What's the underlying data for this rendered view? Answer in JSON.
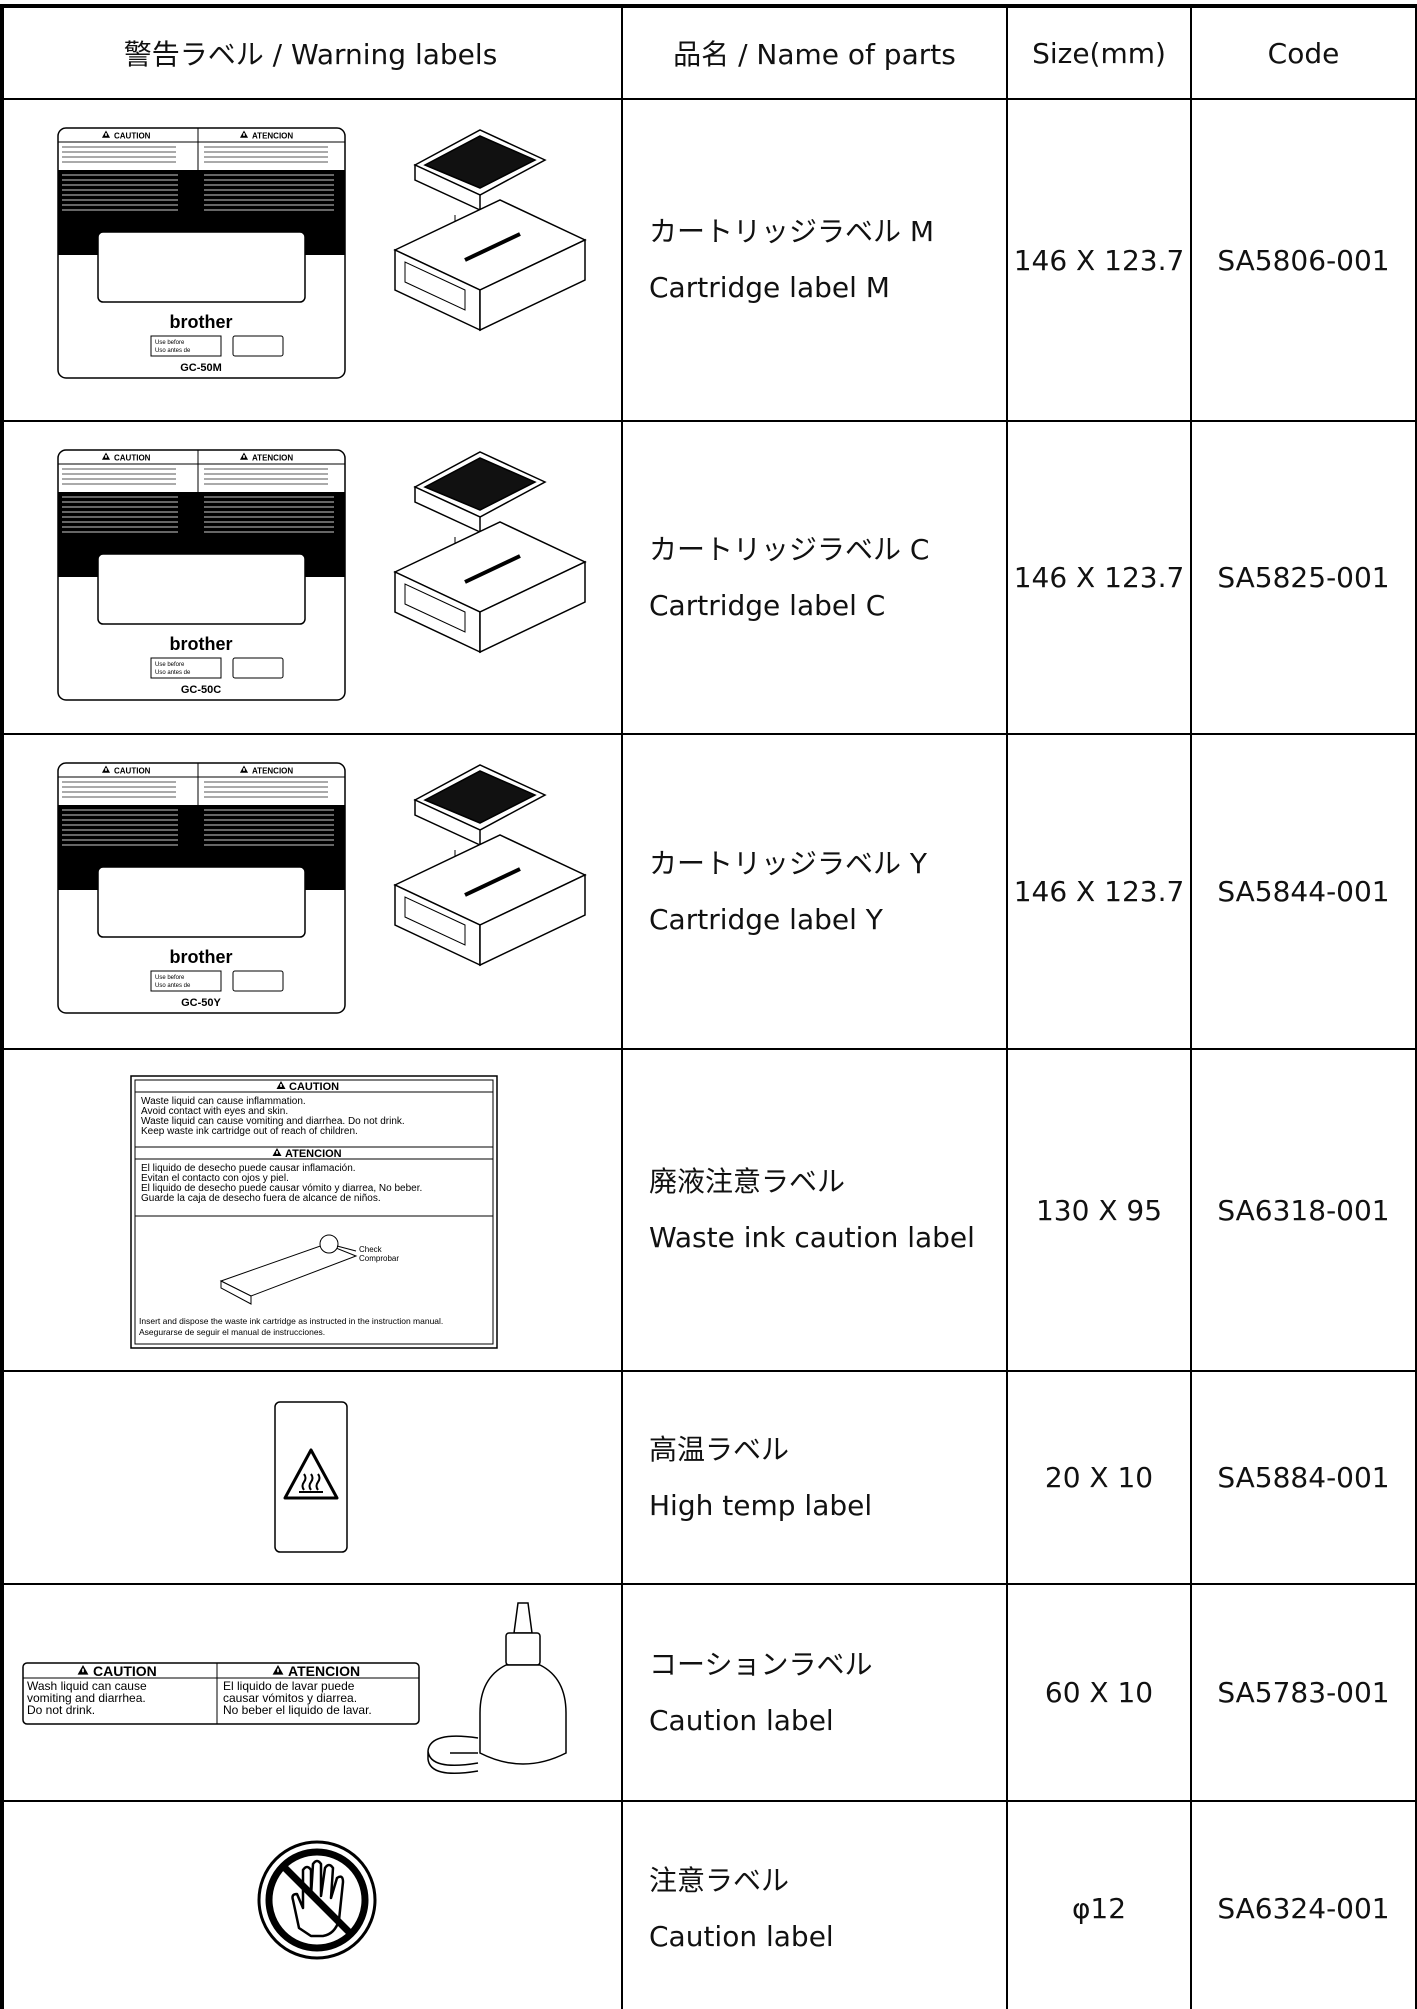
{
  "header": [
    "警告ラベル / Warning labels",
    "品名 / Name of parts",
    "Size(mm)",
    "Code"
  ],
  "rows": [
    {
      "name_ja": "カートリッジラベル M",
      "name_en": "Cartridge label M",
      "size": "146 X 123.7",
      "code": "SA5806-001",
      "label": {
        "caution": "CAUTION",
        "atencion": "ATENCION",
        "brand": "brother",
        "use": [
          "Use before",
          "Uso antes de"
        ],
        "model": "GC-50M"
      }
    },
    {
      "name_ja": "カートリッジラベル C",
      "name_en": "Cartridge label C",
      "size": "146 X 123.7",
      "code": "SA5825-001",
      "label": {
        "caution": "CAUTION",
        "atencion": "ATENCION",
        "brand": "brother",
        "use": [
          "Use before",
          "Uso antes de"
        ],
        "model": "GC-50C"
      }
    },
    {
      "name_ja": "カートリッジラベル Y",
      "name_en": "Cartridge label Y",
      "size": "146 X 123.7",
      "code": "SA5844-001",
      "label": {
        "caution": "CAUTION",
        "atencion": "ATENCION",
        "brand": "brother",
        "use": [
          "Use before",
          "Uso antes de"
        ],
        "model": "GC-50Y"
      }
    },
    {
      "name_ja": "廃液注意ラベル",
      "name_en": "Waste ink caution label",
      "size": "130 X 95",
      "code": "SA6318-001",
      "label": {
        "caution": "CAUTION",
        "en": [
          "Waste liquid can cause inflammation.",
          "Avoid contact with eyes and skin.",
          "Waste liquid can cause vomiting and diarrhea. Do not drink.",
          "Keep waste ink cartridge out of reach of children."
        ],
        "atencion": "ATENCION",
        "es": [
          "El liquido de desecho puede causar inflamación.",
          "Evitan el contacto con ojos y piel.",
          "El liquido de desecho puede causar vómito y diarrea, No beber.",
          "Guarde la caja de desecho fuera de alcance de niños."
        ],
        "check": [
          "Check",
          "Comprobar"
        ],
        "footer": [
          "Insert and dispose the waste ink cartridge as instructed in the instruction manual.",
          "Asegurarse de seguir el manual de instrucciones."
        ]
      }
    },
    {
      "name_ja": "高温ラベル",
      "name_en": "High temp label",
      "size": "20 X 10",
      "code": "SA5884-001"
    },
    {
      "name_ja": "コーションラベル",
      "name_en": "Caution label",
      "size": "60 X 10",
      "code": "SA5783-001",
      "label": {
        "caution": "CAUTION",
        "atencion": "ATENCION",
        "en": [
          "Wash liquid can cause",
          "vomiting and diarrhea.",
          "Do not drink."
        ],
        "es": [
          "El liquido de lavar puede",
          "causar vómitos y diarrea.",
          "No beber el liquido de lavar."
        ]
      }
    },
    {
      "name_ja": "注意ラベル",
      "name_en": "Caution label",
      "size": "φ12",
      "code": "SA6324-001"
    }
  ]
}
